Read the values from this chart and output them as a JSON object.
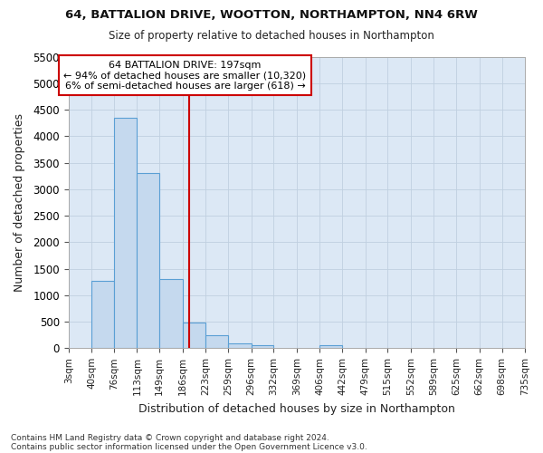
{
  "title": "64, BATTALION DRIVE, WOOTTON, NORTHAMPTON, NN4 6RW",
  "subtitle": "Size of property relative to detached houses in Northampton",
  "xlabel": "Distribution of detached houses by size in Northampton",
  "ylabel": "Number of detached properties",
  "annotation_line1": "64 BATTALION DRIVE: 197sqm",
  "annotation_line2": "← 94% of detached houses are smaller (10,320)",
  "annotation_line3": "6% of semi-detached houses are larger (618) →",
  "bin_edges": [
    3,
    40,
    76,
    113,
    149,
    186,
    223,
    259,
    296,
    332,
    369,
    406,
    442,
    479,
    515,
    552,
    589,
    625,
    662,
    698,
    735
  ],
  "bin_counts": [
    0,
    1270,
    4350,
    3300,
    1300,
    490,
    240,
    90,
    55,
    0,
    0,
    55,
    0,
    0,
    0,
    0,
    0,
    0,
    0,
    0
  ],
  "bar_color": "#c5d9ee",
  "bar_edge_color": "#5a9fd4",
  "bar_linewidth": 0.8,
  "vline_color": "#cc0000",
  "vline_x": 197,
  "ylim": [
    0,
    5500
  ],
  "ytick_interval": 500,
  "grid_color": "#c0d0e0",
  "background_color": "#dce8f5",
  "footnote1": "Contains HM Land Registry data © Crown copyright and database right 2024.",
  "footnote2": "Contains public sector information licensed under the Open Government Licence v3.0."
}
